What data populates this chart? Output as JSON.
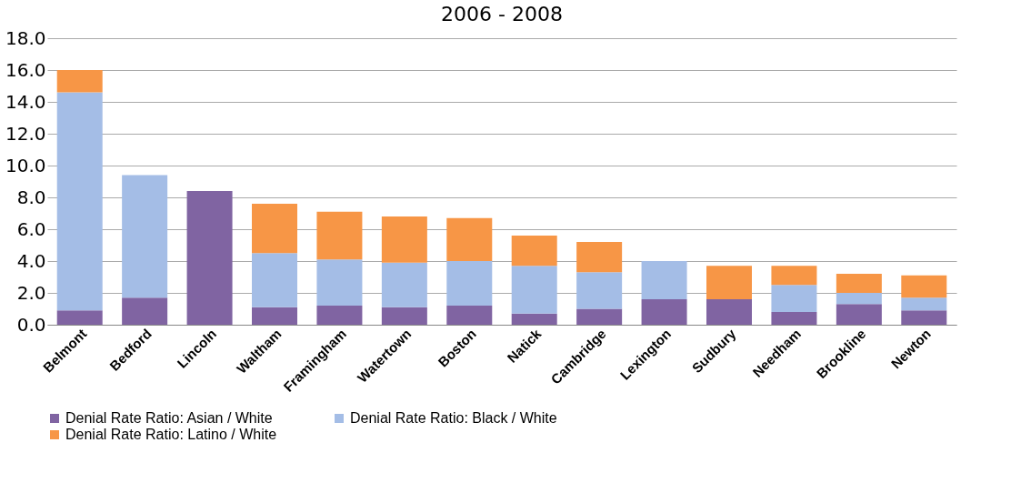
{
  "chart_data": {
    "type": "bar",
    "title": "2006 - 2008",
    "stacked": true,
    "categories": [
      "Belmont",
      "Bedford",
      "Lincoln",
      "Waltham",
      "Framingham",
      "Watertown",
      "Boston",
      "Natick",
      "Cambridge",
      "Lexington",
      "Sudbury",
      "Needham",
      "Brookline",
      "Newton"
    ],
    "series": [
      {
        "name": "Denial Rate Ratio: Asian / White",
        "color": "#8064a2",
        "values": [
          0.9,
          1.7,
          8.4,
          1.1,
          1.2,
          1.1,
          1.2,
          0.7,
          1.0,
          1.6,
          1.6,
          0.8,
          1.3,
          0.9
        ]
      },
      {
        "name": "Denial Rate Ratio: Black / White",
        "color": "#a4bde6",
        "values": [
          13.7,
          7.7,
          0,
          3.4,
          2.9,
          2.8,
          2.8,
          3.0,
          2.3,
          2.4,
          0,
          1.7,
          0.7,
          0.8
        ]
      },
      {
        "name": "Denial Rate Ratio: Latino / White",
        "color": "#f79646",
        "values": [
          1.4,
          0,
          0,
          3.1,
          3.0,
          2.9,
          2.7,
          1.9,
          1.9,
          0,
          2.1,
          1.2,
          1.2,
          1.4
        ]
      }
    ],
    "ylim": [
      0,
      18
    ],
    "yticks": [
      {
        "value": 0,
        "label": "0.0"
      },
      {
        "value": 2,
        "label": "2.0"
      },
      {
        "value": 4,
        "label": "4.0"
      },
      {
        "value": 6,
        "label": "6.0"
      },
      {
        "value": 8,
        "label": "8.0"
      },
      {
        "value": 10,
        "label": "10.0"
      },
      {
        "value": 12,
        "label": "12.0"
      },
      {
        "value": 14,
        "label": "14.0"
      },
      {
        "value": 16,
        "label": "16.0"
      },
      {
        "value": 18,
        "label": "18.0"
      }
    ],
    "grid": "y",
    "legend": "bottom"
  }
}
